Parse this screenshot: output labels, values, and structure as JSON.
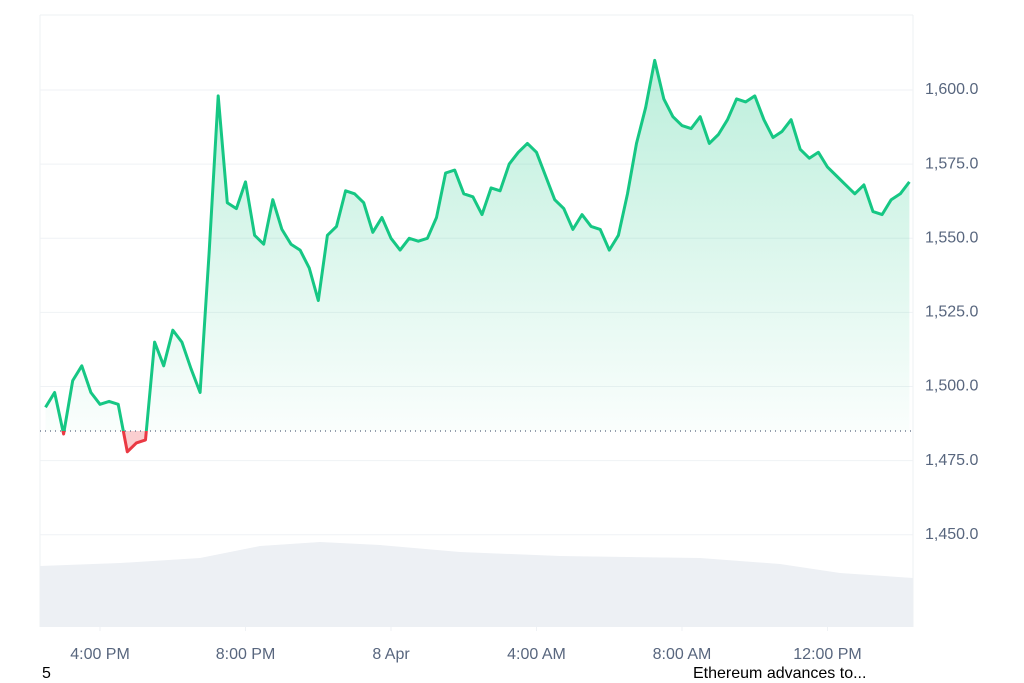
{
  "chart_data": {
    "type": "line",
    "x": [
      14.5,
      14.75,
      15,
      15.25,
      15.5,
      15.75,
      16,
      16.25,
      16.5,
      16.75,
      17,
      17.25,
      17.5,
      17.75,
      18,
      18.25,
      18.5,
      18.75,
      19,
      19.25,
      19.5,
      19.75,
      20,
      20.25,
      20.5,
      20.75,
      21,
      21.25,
      21.5,
      21.75,
      22,
      22.25,
      22.5,
      22.75,
      23,
      23.25,
      23.5,
      23.75,
      24,
      24.25,
      24.5,
      24.75,
      25,
      25.25,
      25.5,
      25.75,
      26,
      26.25,
      26.5,
      26.75,
      27,
      27.25,
      27.5,
      27.75,
      28,
      28.25,
      28.5,
      28.75,
      29,
      29.25,
      29.5,
      29.75,
      30,
      30.25,
      30.5,
      30.75,
      31,
      31.25,
      31.5,
      31.75,
      32,
      32.25,
      32.5,
      32.75,
      33,
      33.25,
      33.5,
      33.75,
      34,
      34.25,
      34.5,
      34.75,
      35,
      35.25,
      35.5,
      35.75,
      36,
      36.25,
      36.5,
      36.75,
      37,
      37.25,
      37.5,
      37.75,
      38,
      38.25
    ],
    "values": [
      1493,
      1498,
      1484,
      1502,
      1507,
      1498,
      1494,
      1495,
      1494,
      1478,
      1481,
      1482,
      1515,
      1507,
      1519,
      1515,
      1506,
      1498,
      1545,
      1598,
      1562,
      1560,
      1569,
      1551,
      1548,
      1563,
      1553,
      1548,
      1546,
      1540,
      1529,
      1551,
      1554,
      1566,
      1565,
      1562,
      1552,
      1557,
      1550,
      1546,
      1550,
      1549,
      1550,
      1557,
      1572,
      1573,
      1565,
      1564,
      1558,
      1567,
      1566,
      1575,
      1579,
      1582,
      1579,
      1571,
      1563,
      1560,
      1553,
      1558,
      1554,
      1553,
      1546,
      1551,
      1565,
      1582,
      1594,
      1610,
      1597,
      1591,
      1588,
      1587,
      1591,
      1582,
      1585,
      1590,
      1597,
      1596,
      1598,
      1590,
      1584,
      1586,
      1590,
      1580,
      1577,
      1579,
      1574,
      1571,
      1568,
      1565,
      1568,
      1559,
      1558,
      1563,
      1565,
      1569
    ],
    "baseline": 1485,
    "up_color": "#16c784",
    "down_color": "#ea3943",
    "xlim": [
      14.35,
      38.35
    ],
    "xticks": [
      {
        "value": 16,
        "label": "4:00 PM"
      },
      {
        "value": 20,
        "label": "8:00 PM"
      },
      {
        "value": 24,
        "label": "8 Apr"
      },
      {
        "value": 28,
        "label": "4:00 AM"
      },
      {
        "value": 32,
        "label": "8:00 AM"
      },
      {
        "value": 36,
        "label": "12:00 PM"
      }
    ],
    "ylim": [
      1418.9,
      1625.3
    ],
    "yticks": [
      {
        "value": 1450,
        "label": "1,450.0"
      },
      {
        "value": 1475,
        "label": "1,475.0"
      },
      {
        "value": 1500,
        "label": "1,500.0"
      },
      {
        "value": 1525,
        "label": "1,525.0"
      },
      {
        "value": 1550,
        "label": "1,550.0"
      },
      {
        "value": 1575,
        "label": "1,575.0"
      },
      {
        "value": 1600,
        "label": "1,600.0"
      }
    ],
    "grid": true
  },
  "footer": {
    "left": "5",
    "right": "Ethereum advances to..."
  }
}
